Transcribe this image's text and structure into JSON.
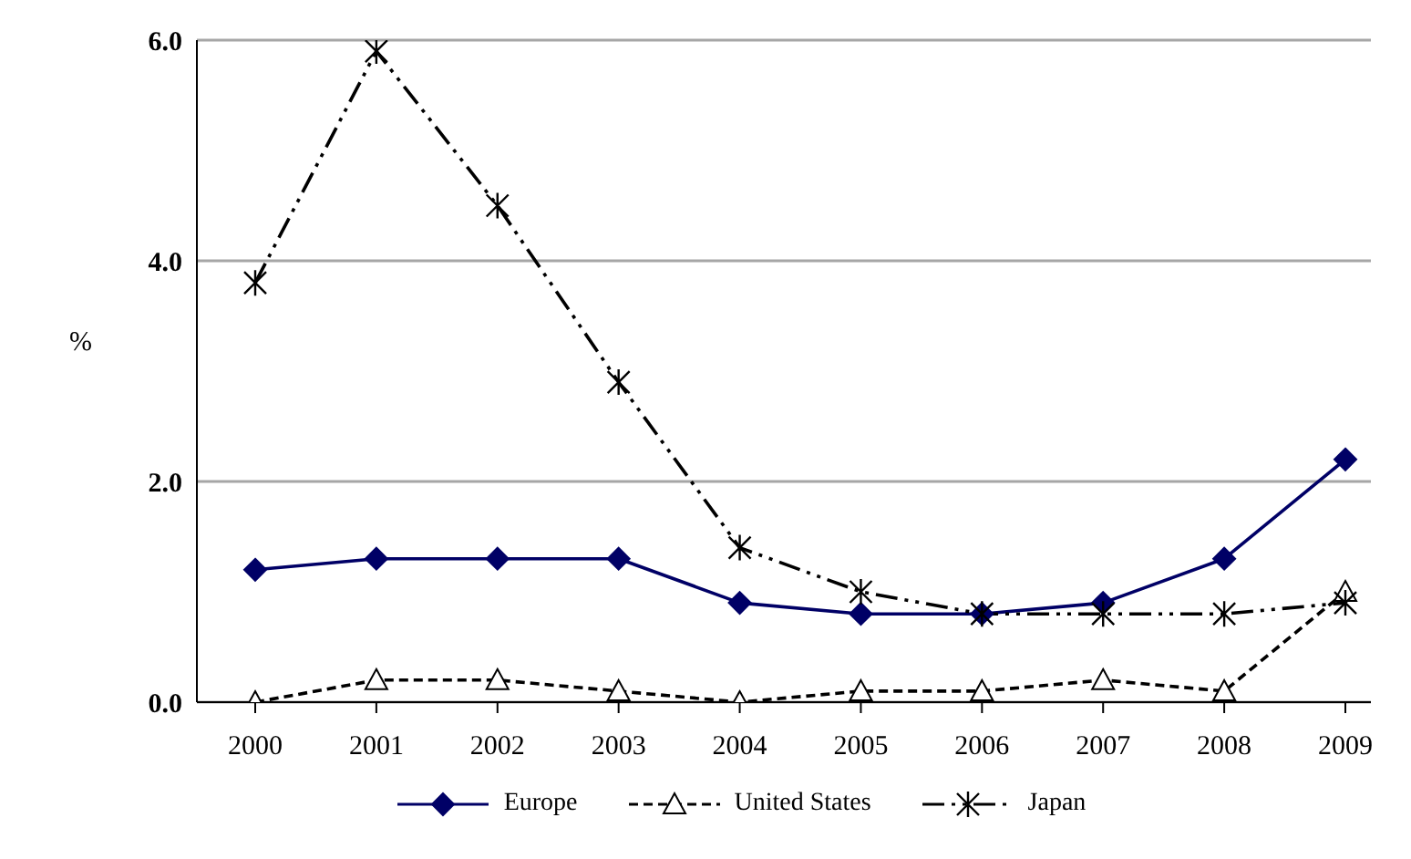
{
  "chart_data": {
    "type": "line",
    "ylabel": "%",
    "categories": [
      "2000",
      "2001",
      "2002",
      "2003",
      "2004",
      "2005",
      "2006",
      "2007",
      "2008",
      "2009"
    ],
    "series": [
      {
        "name": "Europe",
        "color": "#000066",
        "marker": "diamond",
        "line_style": "solid",
        "values": [
          1.2,
          1.3,
          1.3,
          1.3,
          0.9,
          0.8,
          0.8,
          0.9,
          1.3,
          2.2
        ]
      },
      {
        "name": "United States",
        "color": "#000000",
        "marker": "triangle",
        "line_style": "dashed",
        "values": [
          0.0,
          0.2,
          0.2,
          0.1,
          0.0,
          0.1,
          0.1,
          0.2,
          0.1,
          1.0
        ]
      },
      {
        "name": "Japan",
        "color": "#000000",
        "marker": "cross",
        "line_style": "dashed",
        "values": [
          3.8,
          5.9,
          4.5,
          2.9,
          1.4,
          1.0,
          0.8,
          0.8,
          0.8,
          0.9
        ]
      }
    ],
    "ylim": [
      0,
      6
    ],
    "yticks": [
      {
        "value": 0,
        "label": "0.0"
      },
      {
        "value": 2,
        "label": "2.0"
      },
      {
        "value": 4,
        "label": "4.0"
      },
      {
        "value": 6,
        "label": "6.0"
      }
    ],
    "grid": "y",
    "legend": "bottom"
  }
}
